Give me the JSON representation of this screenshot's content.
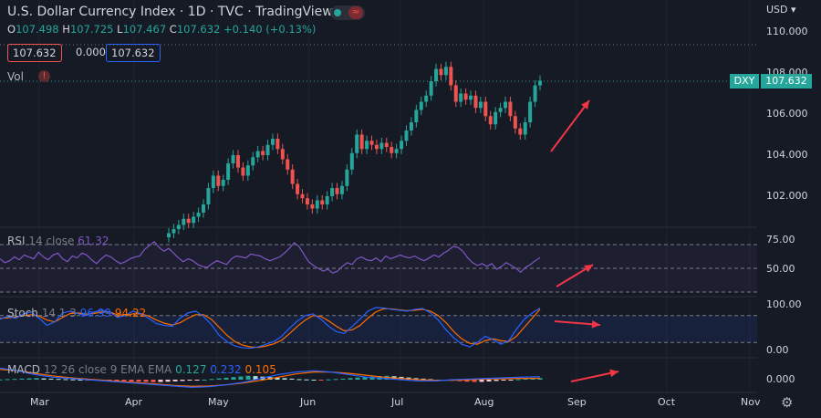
{
  "header": {
    "title": "U.S. Dollar Currency Index · 1D · TVC · TradingView",
    "ohlc": {
      "o_label": "O",
      "o": "107.498",
      "h_label": "H",
      "h": "107.725",
      "l_label": "L",
      "l": "107.467",
      "c_label": "C",
      "c": "107.632",
      "change": "+0.140 (+0.13%)"
    },
    "sell": "107.632",
    "spread": "0.000",
    "buy": "107.632",
    "vol_label": "Vol",
    "wave_glyph": "≈",
    "warn_glyph": "!"
  },
  "axis": {
    "currency": "USD",
    "currency_caret": "▾",
    "price_ticks": [
      "110.000",
      "108.000",
      "106.000",
      "104.000",
      "102.000"
    ],
    "rsi_ticks": [
      "75.00",
      "50.00"
    ],
    "stoch_ticks": [
      "100.00",
      "0.00"
    ],
    "macd_ticks": [
      "0.000"
    ],
    "symbol_tag": "DXY",
    "last_price": "107.632"
  },
  "time_axis": [
    "Mar",
    "Apr",
    "May",
    "Jun",
    "Jul",
    "Aug",
    "Sep",
    "Oct",
    "Nov"
  ],
  "indicators": {
    "rsi": {
      "name": "RSI",
      "params": "14 close",
      "value": "61.32"
    },
    "stoch": {
      "name": "Stoch",
      "params": "14 1 3",
      "k": "96.99",
      "d": "94.22"
    },
    "macd": {
      "name": "MACD",
      "params": "12 26 close 9 EMA EMA",
      "hist": "0.127",
      "macd": "0.232",
      "signal": "0.105"
    }
  },
  "icons": {
    "settings": "gear-icon"
  },
  "colors": {
    "up": "#26a69a",
    "down": "#ef5350",
    "rsi": "#7e57c2",
    "stoch_k": "#2962ff",
    "stoch_d": "#ff6d00",
    "annotation": "#f23645"
  },
  "chart_data": [
    {
      "type": "candlestick",
      "title": "U.S. Dollar Currency Index",
      "ylim": [
        100.5,
        110.8
      ],
      "last_price": 107.632,
      "months": [
        "Mar",
        "Apr",
        "May",
        "Jun",
        "Jul",
        "Aug",
        "Sep",
        "Oct",
        "Nov"
      ],
      "closes": [
        100.2,
        100.4,
        100.6,
        100.9,
        100.7,
        101.0,
        101.2,
        101.6,
        102.4,
        103.0,
        102.5,
        102.8,
        103.6,
        104.0,
        103.4,
        103.0,
        103.5,
        103.9,
        104.2,
        104.0,
        104.5,
        104.8,
        104.3,
        103.8,
        103.3,
        102.6,
        102.1,
        101.9,
        101.6,
        101.4,
        101.8,
        101.6,
        102.0,
        102.4,
        102.1,
        102.5,
        103.3,
        104.1,
        105.0,
        104.3,
        104.7,
        104.5,
        104.3,
        104.6,
        104.4,
        104.1,
        104.3,
        104.7,
        105.2,
        105.6,
        106.2,
        106.6,
        106.9,
        107.6,
        108.2,
        107.9,
        108.3,
        107.4,
        106.6,
        107.0,
        106.7,
        106.9,
        106.3,
        106.6,
        105.9,
        105.5,
        106.1,
        106.3,
        106.6,
        105.9,
        105.3,
        105.0,
        105.6,
        106.6,
        107.4,
        107.63
      ]
    },
    {
      "type": "line",
      "title": "RSI 14 close",
      "ylim": [
        25,
        85
      ],
      "series": [
        {
          "name": "RSI",
          "values": [
            60,
            56,
            58,
            62,
            59,
            64,
            62,
            60,
            67,
            62,
            59,
            64,
            66,
            60,
            57,
            63,
            61,
            66,
            64,
            59,
            55,
            60,
            64,
            62,
            58,
            55,
            57,
            60,
            62,
            63,
            70,
            74,
            78,
            72,
            68,
            71,
            66,
            61,
            57,
            60,
            58,
            54,
            52,
            51,
            55,
            58,
            56,
            54,
            60,
            63,
            62,
            61,
            65,
            64,
            63,
            60,
            58,
            60,
            62,
            66,
            71,
            77,
            73,
            65,
            57,
            53,
            50,
            47,
            49,
            45,
            47,
            52,
            56,
            54,
            60,
            62,
            59,
            58,
            61,
            57,
            63,
            60,
            62,
            64,
            62,
            61,
            63,
            60,
            58,
            61,
            64,
            62,
            66,
            69,
            73,
            72,
            68,
            61,
            56,
            53,
            55,
            52,
            55,
            49,
            52,
            56,
            53,
            50,
            46,
            51,
            54,
            58,
            61.32
          ]
        }
      ]
    },
    {
      "type": "line",
      "title": "Stoch 14 1 3",
      "ylim": [
        0,
        100
      ],
      "series": [
        {
          "name": "%K",
          "values": [
            72,
            78,
            74,
            84,
            88,
            74,
            58,
            66,
            86,
            90,
            84,
            80,
            88,
            92,
            88,
            76,
            80,
            90,
            84,
            74,
            62,
            58,
            56,
            74,
            86,
            90,
            78,
            60,
            36,
            22,
            12,
            8,
            7,
            10,
            16,
            22,
            34,
            52,
            68,
            80,
            84,
            72,
            56,
            44,
            40,
            56,
            72,
            90,
            98,
            97,
            94,
            92,
            90,
            94,
            96,
            86,
            70,
            48,
            30,
            16,
            10,
            20,
            34,
            26,
            16,
            24,
            50,
            72,
            86,
            96.99
          ]
        },
        {
          "name": "%D",
          "values": [
            74,
            75,
            77,
            80,
            82,
            79,
            70,
            66,
            76,
            85,
            86,
            83,
            85,
            88,
            88,
            82,
            80,
            84,
            84,
            79,
            70,
            63,
            59,
            64,
            74,
            82,
            82,
            72,
            54,
            36,
            22,
            14,
            10,
            9,
            12,
            17,
            25,
            40,
            56,
            70,
            80,
            78,
            68,
            56,
            46,
            48,
            58,
            74,
            88,
            95,
            95,
            93,
            91,
            92,
            94,
            90,
            80,
            64,
            44,
            28,
            18,
            16,
            24,
            28,
            24,
            22,
            34,
            54,
            74,
            94.22
          ]
        }
      ]
    },
    {
      "type": "bar+line",
      "title": "MACD 12 26 close 9 EMA EMA",
      "series": [
        {
          "name": "Histogram",
          "values": [
            0.02,
            0.04,
            0.06,
            0.08,
            0.1,
            0.12,
            0.1,
            0.08,
            0.06,
            0.04,
            0.02,
            0.0,
            -0.02,
            -0.04,
            -0.06,
            -0.08,
            -0.1,
            -0.12,
            -0.14,
            -0.16,
            -0.18,
            -0.2,
            -0.18,
            -0.16,
            -0.13,
            -0.1,
            -0.07,
            -0.04,
            0.0,
            0.05,
            0.1,
            0.15,
            0.2,
            0.25,
            0.3,
            0.28,
            0.24,
            0.2,
            0.16,
            0.12,
            0.08,
            0.04,
            0.02,
            0.0,
            -0.02,
            0.02,
            0.05,
            0.08,
            0.12,
            0.16,
            0.2,
            0.24,
            0.28,
            0.3,
            0.27,
            0.22,
            0.17,
            0.12,
            0.08,
            0.04,
            0.0,
            -0.04,
            -0.08,
            -0.12,
            -0.16,
            -0.18,
            -0.17,
            -0.14,
            -0.1,
            -0.06,
            -0.02,
            0.03,
            0.07,
            0.1,
            0.127
          ]
        },
        {
          "name": "MACD",
          "values": [
            0.9,
            0.7,
            0.4,
            0.2,
            0.1,
            0.0,
            -0.1,
            -0.2,
            -0.3,
            -0.4,
            -0.5,
            -0.6,
            -0.55,
            -0.4,
            -0.2,
            0.1,
            0.4,
            0.6,
            0.7,
            0.6,
            0.4,
            0.2,
            0.1,
            0.0,
            -0.1,
            -0.1,
            0.0,
            0.05,
            0.1,
            0.15,
            0.2,
            0.232
          ]
        },
        {
          "name": "Signal",
          "values": [
            0.8,
            0.7,
            0.5,
            0.3,
            0.15,
            0.05,
            -0.05,
            -0.15,
            -0.25,
            -0.35,
            -0.45,
            -0.52,
            -0.5,
            -0.4,
            -0.25,
            -0.05,
            0.2,
            0.45,
            0.6,
            0.6,
            0.5,
            0.35,
            0.2,
            0.1,
            0.0,
            -0.05,
            -0.05,
            0.0,
            0.05,
            0.08,
            0.1,
            0.105
          ]
        }
      ]
    }
  ]
}
